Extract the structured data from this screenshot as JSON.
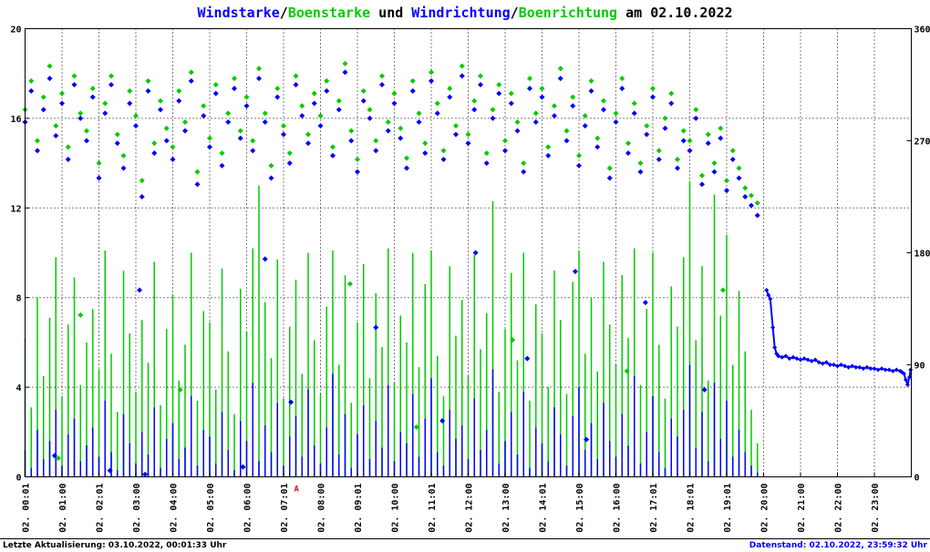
{
  "title": {
    "segments": [
      {
        "text": "Windstarke",
        "color": "#0000ff"
      },
      {
        "text": "/",
        "color": "#000000"
      },
      {
        "text": "Boenstarke",
        "color": "#00cc00"
      },
      {
        "text": " und ",
        "color": "#000000"
      },
      {
        "text": "Windrichtung",
        "color": "#0000ff"
      },
      {
        "text": "/",
        "color": "#000000"
      },
      {
        "text": "Boenrichtung",
        "color": "#00cc00"
      },
      {
        "text": " am 02.10.2022",
        "color": "#000000"
      }
    ]
  },
  "footer": {
    "left": "Letzte Aktualisierung: 03.10.2022, 00:01:33 Uhr",
    "left_color": "#000000",
    "right": "Datenstand: 02.10.2022, 23:59:32 Uhr",
    "right_color": "#0000ff"
  },
  "marker": {
    "text": "A",
    "color": "#ff0000",
    "hour": 7.35
  },
  "chart_data": {
    "type": "mixed",
    "title": "Windstarke/Boenstarke und Windrichtung/Boenrichtung am 02.10.2022",
    "legend_position": "none",
    "grid": {
      "h_left_ticks": [
        4,
        8,
        12,
        16
      ],
      "vertical_every_hour": true
    },
    "colors": {
      "wind": "#0000ff",
      "gust": "#00cc00"
    },
    "left_axis": {
      "min": 0,
      "max": 20,
      "ticks": [
        0,
        4,
        8,
        12,
        16,
        20
      ]
    },
    "right_axis": {
      "min": 0,
      "max": 360,
      "ticks": [
        0,
        90,
        180,
        270,
        360
      ]
    },
    "x_axis": {
      "min_hour": 0,
      "max_hour": 24,
      "tick_labels": [
        "02. 00:01",
        "02. 01:00",
        "02. 02:01",
        "02. 03:00",
        "02. 04:00",
        "02. 05:00",
        "02. 06:00",
        "02. 07:01",
        "02. 08:00",
        "02. 09:01",
        "02. 10:00",
        "02. 11:01",
        "02. 12:00",
        "02. 13:00",
        "02. 14:01",
        "02. 15:00",
        "02. 16:00",
        "02. 17:01",
        "02. 18:01",
        "02. 19:01",
        "02. 20:00",
        "02. 21:00",
        "02. 22:00",
        "02. 23:00"
      ]
    },
    "sample_step_hours": 0.1666667,
    "series": {
      "wind_speed": {
        "name": "Windstarke",
        "type": "impulse",
        "axis": "left",
        "values": [
          1.2,
          0.4,
          2.1,
          0.8,
          1.6,
          3.0,
          0.5,
          1.9,
          2.6,
          0.7,
          1.4,
          2.2,
          0.9,
          3.4,
          1.1,
          0.3,
          2.8,
          1.5,
          0.6,
          2.0,
          1.0,
          3.1,
          0.4,
          1.7,
          2.4,
          0.8,
          1.3,
          3.6,
          0.5,
          2.1,
          1.8,
          0.6,
          2.9,
          1.2,
          0.3,
          2.5,
          1.6,
          4.2,
          0.7,
          2.3,
          1.1,
          3.3,
          0.5,
          1.8,
          2.7,
          0.9,
          3.9,
          1.4,
          0.6,
          2.2,
          4.6,
          1.0,
          2.8,
          0.4,
          1.9,
          3.2,
          0.8,
          2.5,
          1.3,
          4.1,
          0.7,
          2.0,
          1.5,
          3.7,
          0.9,
          2.6,
          4.4,
          1.1,
          0.5,
          3.0,
          1.7,
          2.3,
          0.8,
          3.5,
          1.2,
          2.1,
          4.8,
          0.6,
          1.6,
          2.9,
          1.0,
          3.8,
          0.4,
          2.2,
          1.5,
          0.7,
          3.1,
          1.9,
          0.5,
          2.7,
          4.0,
          1.2,
          2.4,
          0.8,
          3.3,
          1.6,
          0.9,
          2.8,
          1.4,
          4.5,
          0.6,
          2.0,
          3.6,
          1.1,
          0.4,
          2.6,
          1.8,
          3.0,
          5.0,
          1.3,
          2.9,
          0.7,
          4.2,
          1.7,
          3.4,
          0.9,
          2.1,
          1.1,
          0.5,
          0.2
        ]
      },
      "gust_speed": {
        "name": "Boenstarke",
        "type": "impulse",
        "axis": "left",
        "values": [
          6.2,
          3.1,
          8.0,
          4.5,
          7.1,
          9.8,
          3.6,
          6.8,
          8.9,
          4.1,
          6.0,
          7.5,
          4.8,
          10.1,
          5.5,
          2.9,
          9.2,
          6.4,
          3.8,
          7.0,
          5.1,
          9.6,
          3.2,
          6.6,
          8.1,
          4.3,
          5.9,
          10.0,
          3.4,
          7.4,
          6.9,
          3.9,
          9.3,
          5.6,
          2.8,
          8.4,
          6.5,
          10.2,
          13.0,
          7.8,
          5.3,
          9.7,
          3.5,
          6.7,
          8.8,
          4.6,
          10.0,
          6.1,
          3.7,
          7.6,
          10.1,
          5.0,
          9.0,
          3.3,
          6.9,
          9.5,
          4.4,
          8.2,
          5.8,
          10.2,
          4.2,
          7.2,
          6.0,
          10.0,
          4.9,
          8.6,
          10.1,
          5.4,
          3.6,
          9.4,
          6.3,
          7.9,
          4.5,
          9.9,
          5.7,
          7.3,
          12.3,
          3.8,
          6.6,
          9.1,
          5.2,
          10.0,
          3.4,
          7.7,
          6.4,
          4.0,
          9.2,
          7.0,
          3.7,
          8.7,
          10.1,
          5.5,
          8.0,
          4.7,
          9.6,
          6.8,
          5.0,
          9.0,
          6.2,
          10.2,
          4.1,
          7.5,
          10.0,
          5.9,
          3.5,
          8.5,
          6.7,
          9.8,
          13.2,
          6.1,
          9.4,
          4.3,
          12.6,
          7.2,
          10.8,
          5.0,
          8.3,
          5.6,
          3.0,
          1.5
        ]
      },
      "wind_direction": {
        "name": "Windrichtung",
        "type": "scatter",
        "axis": "right",
        "values": [
          285,
          310,
          262,
          295,
          320,
          274,
          300,
          255,
          315,
          288,
          270,
          305,
          240,
          292,
          315,
          268,
          248,
          300,
          282,
          225,
          310,
          260,
          295,
          270,
          255,
          302,
          278,
          318,
          235,
          290,
          265,
          308,
          250,
          285,
          312,
          272,
          298,
          262,
          320,
          285,
          240,
          305,
          275,
          252,
          315,
          290,
          268,
          300,
          282,
          310,
          258,
          295,
          325,
          270,
          245,
          302,
          288,
          262,
          315,
          278,
          300,
          272,
          248,
          310,
          285,
          260,
          318,
          292,
          255,
          305,
          275,
          322,
          268,
          295,
          315,
          252,
          288,
          308,
          262,
          300,
          278,
          245,
          312,
          285,
          305,
          258,
          290,
          320,
          270,
          298,
          250,
          282,
          310,
          265,
          295,
          240,
          285,
          312,
          260,
          292,
          245,
          275,
          305,
          255,
          280,
          300,
          248,
          270,
          262,
          288,
          235,
          268,
          245,
          272,
          230,
          255,
          240,
          225,
          218,
          210
        ]
      },
      "gust_direction": {
        "name": "Boenrichtung",
        "type": "scatter",
        "axis": "right",
        "values": [
          295,
          318,
          270,
          305,
          330,
          282,
          308,
          265,
          322,
          292,
          278,
          312,
          252,
          300,
          322,
          275,
          258,
          310,
          290,
          238,
          318,
          268,
          302,
          280,
          265,
          310,
          285,
          325,
          245,
          298,
          272,
          315,
          260,
          292,
          320,
          278,
          305,
          270,
          328,
          292,
          250,
          312,
          282,
          260,
          322,
          298,
          275,
          308,
          290,
          318,
          265,
          302,
          332,
          278,
          255,
          310,
          295,
          270,
          322,
          285,
          308,
          280,
          256,
          318,
          292,
          268,
          325,
          300,
          262,
          312,
          282,
          330,
          275,
          302,
          322,
          260,
          295,
          315,
          270,
          308,
          285,
          252,
          320,
          292,
          312,
          265,
          298,
          328,
          278,
          305,
          258,
          290,
          318,
          272,
          302,
          248,
          292,
          320,
          268,
          300,
          252,
          282,
          312,
          262,
          288,
          308,
          255,
          278,
          270,
          295,
          242,
          275,
          252,
          280,
          238,
          262,
          248,
          232,
          226,
          220
        ]
      },
      "wind_direction_outliers": {
        "type": "scatter",
        "axis": "right",
        "points": [
          [
            0.8,
            17
          ],
          [
            2.3,
            5
          ],
          [
            3.25,
            2
          ],
          [
            3.1,
            150
          ],
          [
            5.9,
            8
          ],
          [
            6.5,
            175
          ],
          [
            7.2,
            60
          ],
          [
            9.5,
            120
          ],
          [
            11.3,
            45
          ],
          [
            12.2,
            180
          ],
          [
            13.6,
            95
          ],
          [
            14.9,
            165
          ],
          [
            15.2,
            30
          ],
          [
            16.8,
            140
          ],
          [
            18.4,
            70
          ]
        ]
      },
      "gust_direction_outliers": {
        "type": "scatter",
        "axis": "right",
        "points": [
          [
            0.9,
            15
          ],
          [
            1.5,
            130
          ],
          [
            4.2,
            70
          ],
          [
            8.8,
            155
          ],
          [
            10.6,
            40
          ],
          [
            13.2,
            110
          ],
          [
            16.3,
            85
          ],
          [
            18.9,
            150
          ]
        ]
      },
      "wind_direction_tail": {
        "name": "Windrichtung (nach 20:00)",
        "type": "line-scatter",
        "axis": "right",
        "points": [
          [
            20.08,
            150
          ],
          [
            20.13,
            146
          ],
          [
            20.18,
            143
          ],
          [
            20.25,
            120
          ],
          [
            20.3,
            104
          ],
          [
            20.35,
            99
          ],
          [
            20.4,
            97
          ],
          [
            20.5,
            96
          ],
          [
            20.6,
            97
          ],
          [
            20.7,
            95
          ],
          [
            20.8,
            96
          ],
          [
            20.9,
            95
          ],
          [
            21.0,
            94
          ],
          [
            21.1,
            95
          ],
          [
            21.2,
            94
          ],
          [
            21.3,
            93
          ],
          [
            21.4,
            94
          ],
          [
            21.5,
            92
          ],
          [
            21.6,
            91
          ],
          [
            21.7,
            92
          ],
          [
            21.8,
            90
          ],
          [
            21.9,
            90
          ],
          [
            22.0,
            89
          ],
          [
            22.1,
            90
          ],
          [
            22.2,
            89
          ],
          [
            22.3,
            88
          ],
          [
            22.4,
            89
          ],
          [
            22.5,
            88
          ],
          [
            22.6,
            88
          ],
          [
            22.7,
            87
          ],
          [
            22.8,
            88
          ],
          [
            22.9,
            87
          ],
          [
            23.0,
            87
          ],
          [
            23.1,
            86
          ],
          [
            23.2,
            87
          ],
          [
            23.3,
            86
          ],
          [
            23.4,
            86
          ],
          [
            23.5,
            85
          ],
          [
            23.6,
            86
          ],
          [
            23.7,
            85
          ],
          [
            23.75,
            84
          ],
          [
            23.8,
            83
          ],
          [
            23.85,
            78
          ],
          [
            23.9,
            74
          ],
          [
            23.95,
            80
          ],
          [
            23.98,
            86
          ]
        ]
      }
    }
  }
}
